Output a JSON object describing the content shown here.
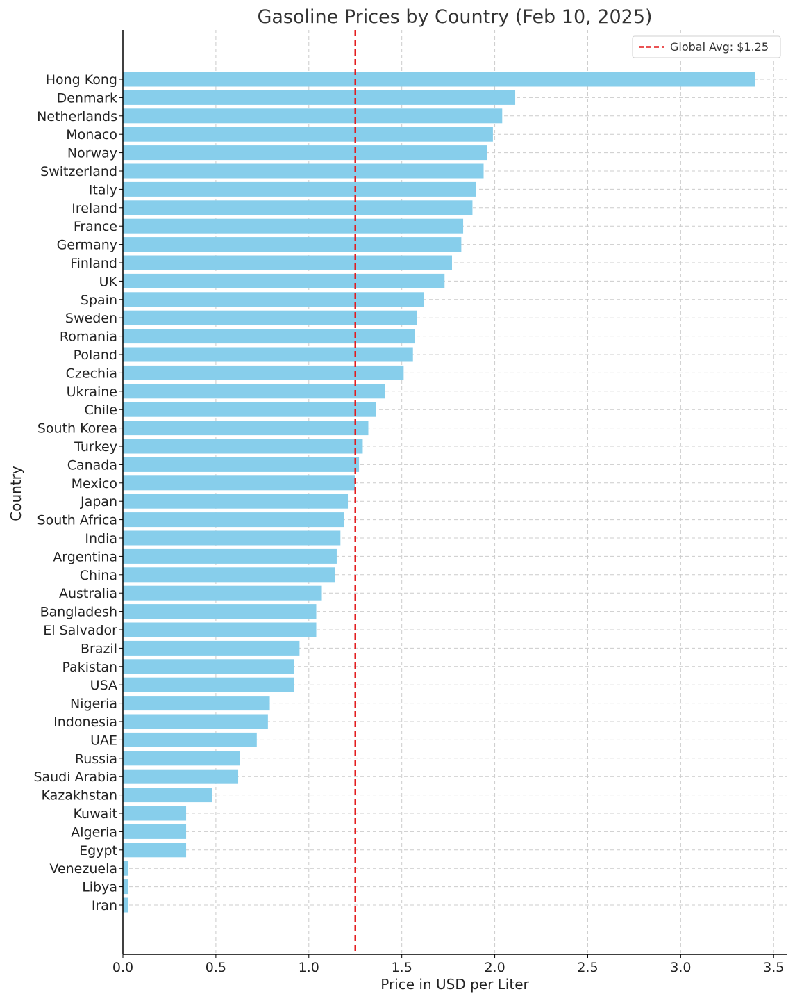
{
  "colors": {
    "bar": "#87ceeb",
    "avg_line": "#e31a1c",
    "grid": "#cccccc",
    "axis": "#000000"
  },
  "chart_data": {
    "type": "bar",
    "orientation": "horizontal",
    "title": "Gasoline Prices by Country (Feb 10, 2025)",
    "xlabel": "Price in USD per Liter",
    "ylabel": "Country",
    "xlim": [
      0,
      3.57
    ],
    "x_ticks": [
      0,
      0.5,
      1,
      1.5,
      2,
      2.5,
      3,
      3.5
    ],
    "x_tick_labels": [
      "0.0",
      "0.5",
      "1.0",
      "1.5",
      "2.0",
      "2.5",
      "3.0",
      "3.5"
    ],
    "grid": true,
    "legend_position": "top-right",
    "reference_line": {
      "label": "Global Avg: $1.25",
      "value": 1.25,
      "style": "dashed"
    },
    "categories": [
      "Hong Kong",
      "Denmark",
      "Netherlands",
      "Monaco",
      "Norway",
      "Switzerland",
      "Italy",
      "Ireland",
      "France",
      "Germany",
      "Finland",
      "UK",
      "Spain",
      "Sweden",
      "Romania",
      "Poland",
      "Czechia",
      "Ukraine",
      "Chile",
      "South Korea",
      "Turkey",
      "Canada",
      "Mexico",
      "Japan",
      "South Africa",
      "India",
      "Argentina",
      "China",
      "Australia",
      "Bangladesh",
      "El Salvador",
      "Brazil",
      "Pakistan",
      "USA",
      "Nigeria",
      "Indonesia",
      "UAE",
      "Russia",
      "Saudi Arabia",
      "Kazakhstan",
      "Kuwait",
      "Algeria",
      "Egypt",
      "Venezuela",
      "Libya",
      "Iran"
    ],
    "values": [
      3.4,
      2.11,
      2.04,
      1.99,
      1.96,
      1.94,
      1.9,
      1.88,
      1.83,
      1.82,
      1.77,
      1.73,
      1.62,
      1.58,
      1.57,
      1.56,
      1.51,
      1.41,
      1.36,
      1.32,
      1.29,
      1.27,
      1.25,
      1.21,
      1.19,
      1.17,
      1.15,
      1.14,
      1.07,
      1.04,
      1.04,
      0.95,
      0.92,
      0.92,
      0.79,
      0.78,
      0.72,
      0.63,
      0.62,
      0.48,
      0.34,
      0.34,
      0.34,
      0.03,
      0.03,
      0.03
    ]
  }
}
